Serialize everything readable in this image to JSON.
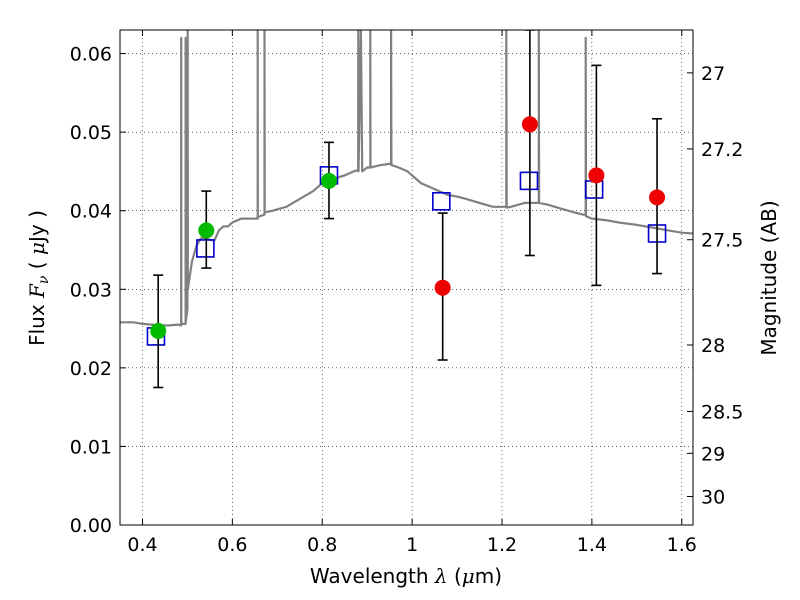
{
  "chart_data": {
    "type": "scatter",
    "xlabel": "Wavelength  λ (μm)",
    "ylabel": "Flux  F_ν  ( μJy )",
    "ylabel_parts": {
      "pre": "Flux ",
      "symbol": "F",
      "sub": "ν",
      "post": "  ( ",
      "mu": "μ",
      "unit": "Jy )"
    },
    "xlabel_parts": {
      "pre": "Wavelength  ",
      "symbol": "λ",
      "post": " (",
      "mu": "μ",
      "unit": "m)"
    },
    "y2label": "Magnitude (AB)",
    "xlim": [
      0.35,
      1.625
    ],
    "ylim": [
      0.0,
      0.063
    ],
    "grid": true,
    "x_ticks": [
      {
        "value": 0.4,
        "label": "0.4"
      },
      {
        "value": 0.6,
        "label": "0.6"
      },
      {
        "value": 0.8,
        "label": "0.8"
      },
      {
        "value": 1.0,
        "label": "1"
      },
      {
        "value": 1.2,
        "label": "1.2"
      },
      {
        "value": 1.4,
        "label": "1.4"
      },
      {
        "value": 1.6,
        "label": "1.6"
      }
    ],
    "y_ticks": [
      {
        "value": 0.0,
        "label": "0.00"
      },
      {
        "value": 0.01,
        "label": "0.01"
      },
      {
        "value": 0.02,
        "label": "0.02"
      },
      {
        "value": 0.03,
        "label": "0.03"
      },
      {
        "value": 0.04,
        "label": "0.04"
      },
      {
        "value": 0.05,
        "label": "0.05"
      },
      {
        "value": 0.06,
        "label": "0.06"
      }
    ],
    "y2_ticks": [
      {
        "mag": 27.0,
        "label": "27"
      },
      {
        "mag": 27.2,
        "label": "27.2"
      },
      {
        "mag": 27.5,
        "label": "27.5"
      },
      {
        "mag": 28.0,
        "label": "28"
      },
      {
        "mag": 28.5,
        "label": "28.5"
      },
      {
        "mag": 29.0,
        "label": "29"
      },
      {
        "mag": 30.0,
        "label": "30"
      }
    ],
    "model_spectrum": {
      "color": "#808080",
      "points": [
        [
          0.35,
          0.0258
        ],
        [
          0.38,
          0.0258
        ],
        [
          0.4,
          0.0256
        ],
        [
          0.42,
          0.0255
        ],
        [
          0.44,
          0.0254
        ],
        [
          0.46,
          0.0254
        ],
        [
          0.48,
          0.0255
        ],
        [
          0.486,
          0.0254
        ],
        [
          0.4861,
          0.062
        ],
        [
          0.4863,
          0.0256
        ],
        [
          0.496,
          0.0256
        ],
        [
          0.4959,
          0.062
        ],
        [
          0.4962,
          0.0258
        ],
        [
          0.5,
          0.0275
        ],
        [
          0.5007,
          0.063
        ],
        [
          0.5009,
          0.03
        ],
        [
          0.51,
          0.0335
        ],
        [
          0.52,
          0.0355
        ],
        [
          0.53,
          0.0365
        ],
        [
          0.54,
          0.0365
        ],
        [
          0.55,
          0.0363
        ],
        [
          0.56,
          0.0362
        ],
        [
          0.57,
          0.0375
        ],
        [
          0.58,
          0.038
        ],
        [
          0.59,
          0.038
        ],
        [
          0.6,
          0.0385
        ],
        [
          0.62,
          0.039
        ],
        [
          0.63,
          0.039
        ],
        [
          0.6563,
          0.039
        ],
        [
          0.6563,
          0.063
        ],
        [
          0.6566,
          0.0392
        ],
        [
          0.6716,
          0.0395
        ],
        [
          0.6716,
          0.063
        ],
        [
          0.672,
          0.0398
        ],
        [
          0.69,
          0.04
        ],
        [
          0.72,
          0.0405
        ],
        [
          0.75,
          0.0415
        ],
        [
          0.78,
          0.0425
        ],
        [
          0.8,
          0.0435
        ],
        [
          0.82,
          0.044
        ],
        [
          0.85,
          0.0445
        ],
        [
          0.87,
          0.045
        ],
        [
          0.88,
          0.0452
        ],
        [
          0.8803,
          0.063
        ],
        [
          0.8806,
          0.045
        ],
        [
          0.886,
          0.063
        ],
        [
          0.889,
          0.045
        ],
        [
          0.9,
          0.0455
        ],
        [
          0.9069,
          0.0455
        ],
        [
          0.9069,
          0.063
        ],
        [
          0.9075,
          0.0455
        ],
        [
          0.93,
          0.0458
        ],
        [
          0.9532,
          0.046
        ],
        [
          0.9532,
          0.063
        ],
        [
          0.954,
          0.0458
        ],
        [
          0.97,
          0.0455
        ],
        [
          0.99,
          0.045
        ],
        [
          1.0,
          0.0445
        ],
        [
          1.02,
          0.0435
        ],
        [
          1.04,
          0.043
        ],
        [
          1.06,
          0.0425
        ],
        [
          1.08,
          0.042
        ],
        [
          1.1,
          0.0418
        ],
        [
          1.12,
          0.0415
        ],
        [
          1.15,
          0.041
        ],
        [
          1.18,
          0.0405
        ],
        [
          1.2,
          0.0405
        ],
        [
          1.2095,
          0.0405
        ],
        [
          1.2095,
          0.063
        ],
        [
          1.2105,
          0.0404
        ],
        [
          1.22,
          0.0405
        ],
        [
          1.25,
          0.041
        ],
        [
          1.28,
          0.041
        ],
        [
          1.2818,
          0.041
        ],
        [
          1.2818,
          0.063
        ],
        [
          1.2825,
          0.041
        ],
        [
          1.3,
          0.0408
        ],
        [
          1.33,
          0.0403
        ],
        [
          1.36,
          0.0398
        ],
        [
          1.38,
          0.0395
        ],
        [
          1.3862,
          0.0395
        ],
        [
          1.3862,
          0.062
        ],
        [
          1.387,
          0.0393
        ],
        [
          1.4,
          0.039
        ],
        [
          1.43,
          0.0388
        ],
        [
          1.46,
          0.0385
        ],
        [
          1.5,
          0.0382
        ],
        [
          1.54,
          0.0378
        ],
        [
          1.57,
          0.0375
        ],
        [
          1.6,
          0.0372
        ],
        [
          1.625,
          0.0371
        ]
      ]
    },
    "series": [
      {
        "marker": "square",
        "color": "#0000cc",
        "points": [
          {
            "x": 0.43,
            "y": 0.024
          },
          {
            "x": 0.54,
            "y": 0.0352
          },
          {
            "x": 0.815,
            "y": 0.0445
          },
          {
            "x": 1.065,
            "y": 0.0412
          },
          {
            "x": 1.26,
            "y": 0.0438
          },
          {
            "x": 1.405,
            "y": 0.0427
          },
          {
            "x": 1.545,
            "y": 0.0371
          }
        ]
      },
      {
        "marker": "circle",
        "color": "#00bb00",
        "points": [
          {
            "x": 0.435,
            "y": 0.0247,
            "err": [
              0.0175,
              0.0318
            ]
          },
          {
            "x": 0.542,
            "y": 0.0375,
            "err": [
              0.0327,
              0.0425
            ]
          },
          {
            "x": 0.815,
            "y": 0.0438,
            "err": [
              0.039,
              0.0487
            ]
          }
        ]
      },
      {
        "marker": "circle",
        "color": "#ee0000",
        "points": [
          {
            "x": 1.068,
            "y": 0.0302,
            "err": [
              0.021,
              0.0397
            ]
          },
          {
            "x": 1.262,
            "y": 0.051,
            "err": [
              0.0343,
              0.063
            ]
          },
          {
            "x": 1.41,
            "y": 0.0445,
            "err": [
              0.0305,
              0.0585
            ]
          },
          {
            "x": 1.545,
            "y": 0.0417,
            "err": [
              0.032,
              0.0517
            ]
          }
        ]
      }
    ]
  }
}
